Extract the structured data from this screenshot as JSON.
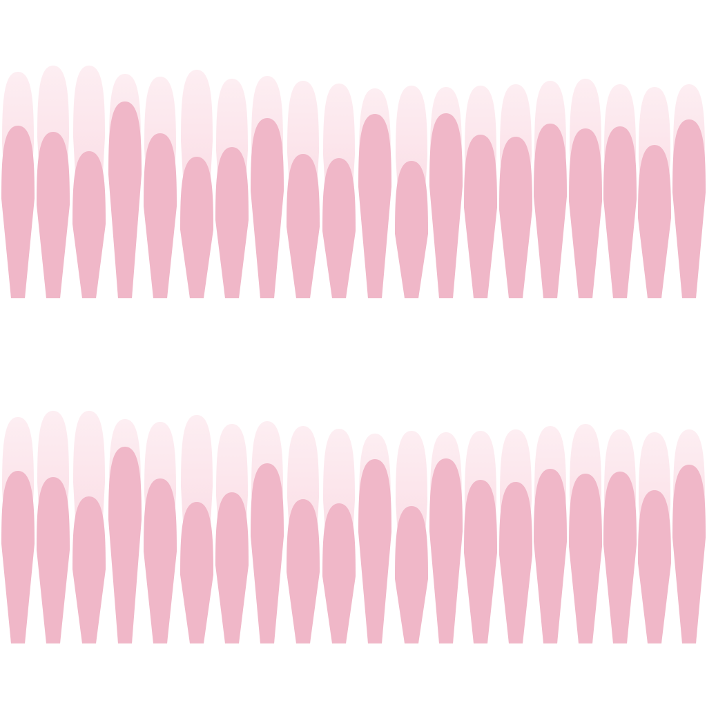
{
  "colors": {
    "background": "#ffffff",
    "tip_light": "#fdeef2",
    "tip_mid": "#fad4df",
    "nail_body": "#f0b7c8"
  },
  "rows": [
    {
      "name": "upper-row",
      "nail_count": 20
    },
    {
      "name": "lower-row",
      "nail_count": 20
    }
  ]
}
